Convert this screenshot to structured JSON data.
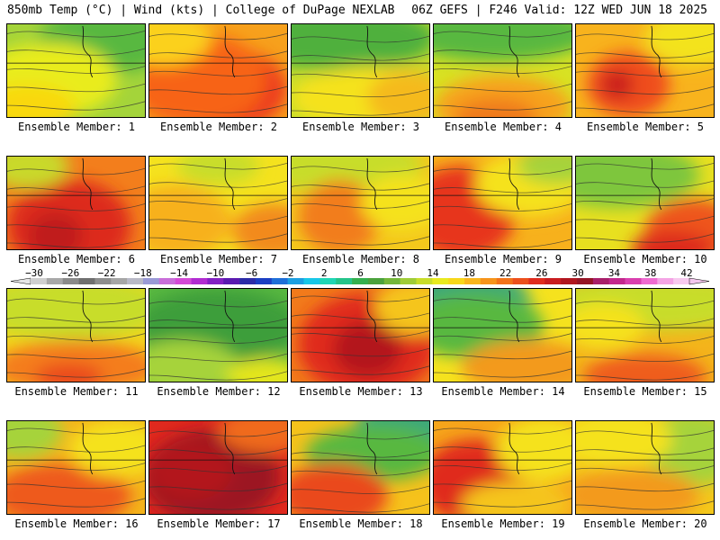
{
  "header": {
    "left": "850mb Temp (°C) | Wind (kts) | College of DuPage NEXLAB",
    "right": "06Z GEFS | F246 Valid: 12Z WED JUN 18 2025"
  },
  "member_label_prefix": "Ensemble Member: ",
  "members": [
    {
      "id": "1",
      "bg": "#a4d43a",
      "spots": [
        [
          "#58b840",
          0.72,
          0.18,
          0.5,
          0.35
        ],
        [
          "#e9ec1a",
          0.3,
          0.6,
          0.5,
          0.4
        ],
        [
          "#f9d80d",
          0.15,
          0.9,
          0.35,
          0.25
        ]
      ]
    },
    {
      "id": "2",
      "bg": "#f7a11c",
      "spots": [
        [
          "#ec3b1f",
          0.55,
          0.7,
          0.45,
          0.45
        ],
        [
          "#f76419",
          0.35,
          0.6,
          0.5,
          0.5
        ],
        [
          "#fbd11a",
          0.1,
          0.15,
          0.35,
          0.3
        ]
      ]
    },
    {
      "id": "3",
      "bg": "#c8dd2a",
      "spots": [
        [
          "#4fb03c",
          0.35,
          0.15,
          0.7,
          0.35
        ],
        [
          "#f5e21e",
          0.6,
          0.8,
          0.6,
          0.35
        ],
        [
          "#f5ba1a",
          0.85,
          0.8,
          0.3,
          0.3
        ]
      ]
    },
    {
      "id": "4",
      "bg": "#d8e223",
      "spots": [
        [
          "#58b840",
          0.45,
          0.1,
          0.7,
          0.3
        ],
        [
          "#f7a21c",
          0.5,
          0.9,
          0.5,
          0.35
        ],
        [
          "#f07a1b",
          0.45,
          1.0,
          0.3,
          0.2
        ]
      ]
    },
    {
      "id": "5",
      "bg": "#f8b31d",
      "spots": [
        [
          "#ef4d1f",
          0.38,
          0.65,
          0.3,
          0.35
        ],
        [
          "#c91d1f",
          0.3,
          0.65,
          0.12,
          0.15
        ],
        [
          "#f3e31f",
          0.85,
          0.15,
          0.35,
          0.3
        ]
      ]
    },
    {
      "id": "6",
      "bg": "#f37e1c",
      "spots": [
        [
          "#dd2a1e",
          0.45,
          0.75,
          0.45,
          0.5
        ],
        [
          "#c01b1f",
          0.35,
          0.85,
          0.2,
          0.25
        ],
        [
          "#c9d929",
          0.15,
          0.1,
          0.3,
          0.25
        ]
      ]
    },
    {
      "id": "7",
      "bg": "#f5e21e",
      "spots": [
        [
          "#f7b11c",
          0.2,
          0.7,
          0.4,
          0.4
        ],
        [
          "#f28a1a",
          0.9,
          0.8,
          0.3,
          0.3
        ],
        [
          "#c8dd2a",
          0.5,
          0.1,
          0.3,
          0.2
        ]
      ]
    },
    {
      "id": "8",
      "bg": "#f4c81c",
      "spots": [
        [
          "#c8dd2a",
          0.35,
          0.1,
          0.6,
          0.3
        ],
        [
          "#f27d1b",
          0.35,
          0.65,
          0.3,
          0.4
        ],
        [
          "#f5e21e",
          0.8,
          0.5,
          0.3,
          0.3
        ]
      ]
    },
    {
      "id": "9",
      "bg": "#f7b11c",
      "spots": [
        [
          "#e7361e",
          0.2,
          0.6,
          0.4,
          0.5
        ],
        [
          "#f5e21e",
          0.7,
          0.3,
          0.4,
          0.35
        ],
        [
          "#a6d33a",
          0.9,
          0.1,
          0.3,
          0.2
        ]
      ]
    },
    {
      "id": "10",
      "bg": "#e8e01f",
      "spots": [
        [
          "#7ec63c",
          0.3,
          0.2,
          0.6,
          0.35
        ],
        [
          "#ee541d",
          0.85,
          0.8,
          0.35,
          0.35
        ],
        [
          "#dd2a1e",
          0.7,
          1.0,
          0.3,
          0.2
        ]
      ]
    },
    {
      "id": "11",
      "bg": "#f5d51a",
      "spots": [
        [
          "#c8dd2a",
          0.45,
          0.2,
          0.7,
          0.35
        ],
        [
          "#f47d1b",
          0.5,
          0.85,
          0.6,
          0.3
        ],
        [
          "#ea4a1e",
          0.45,
          0.95,
          0.25,
          0.15
        ]
      ]
    },
    {
      "id": "12",
      "bg": "#58b840",
      "spots": [
        [
          "#3d9e3a",
          0.5,
          0.4,
          0.6,
          0.4
        ],
        [
          "#a6d33a",
          0.25,
          0.85,
          0.4,
          0.3
        ],
        [
          "#e4e61f",
          0.85,
          0.95,
          0.3,
          0.2
        ]
      ]
    },
    {
      "id": "13",
      "bg": "#f27a1b",
      "spots": [
        [
          "#e0291e",
          0.55,
          0.6,
          0.5,
          0.55
        ],
        [
          "#b3181f",
          0.55,
          0.65,
          0.25,
          0.3
        ],
        [
          "#f5c51a",
          0.9,
          0.2,
          0.3,
          0.3
        ]
      ]
    },
    {
      "id": "14",
      "bg": "#f5e21e",
      "spots": [
        [
          "#3da87a",
          0.2,
          0.15,
          0.5,
          0.4
        ],
        [
          "#58b840",
          0.3,
          0.4,
          0.5,
          0.35
        ],
        [
          "#f39a1b",
          0.7,
          0.85,
          0.5,
          0.3
        ]
      ]
    },
    {
      "id": "15",
      "bg": "#f4b41b",
      "spots": [
        [
          "#c8dd2a",
          0.6,
          0.15,
          0.8,
          0.3
        ],
        [
          "#ef5d1d",
          0.5,
          0.95,
          0.45,
          0.25
        ],
        [
          "#f5e21e",
          0.2,
          0.4,
          0.3,
          0.25
        ]
      ]
    },
    {
      "id": "16",
      "bg": "#f4b41b",
      "spots": [
        [
          "#a6d33a",
          0.1,
          0.1,
          0.3,
          0.3
        ],
        [
          "#ee5a1d",
          0.4,
          0.8,
          0.5,
          0.35
        ],
        [
          "#f5e21e",
          0.8,
          0.3,
          0.35,
          0.3
        ]
      ]
    },
    {
      "id": "17",
      "bg": "#e0291e",
      "spots": [
        [
          "#9c1621",
          0.45,
          0.6,
          0.5,
          0.5
        ],
        [
          "#b3181f",
          0.3,
          0.55,
          0.3,
          0.3
        ],
        [
          "#f06a1b",
          0.85,
          0.1,
          0.35,
          0.25
        ]
      ]
    },
    {
      "id": "18",
      "bg": "#f6c21b",
      "spots": [
        [
          "#3da87a",
          0.85,
          0.1,
          0.4,
          0.35
        ],
        [
          "#58b840",
          0.6,
          0.35,
          0.5,
          0.3
        ],
        [
          "#ea4a1e",
          0.3,
          0.8,
          0.4,
          0.35
        ]
      ]
    },
    {
      "id": "19",
      "bg": "#f6a51b",
      "spots": [
        [
          "#e0291e",
          0.3,
          0.65,
          0.4,
          0.45
        ],
        [
          "#f5e21e",
          0.8,
          0.3,
          0.35,
          0.35
        ],
        [
          "#f5c51a",
          0.6,
          0.9,
          0.4,
          0.25
        ]
      ]
    },
    {
      "id": "20",
      "bg": "#f4c81c",
      "spots": [
        [
          "#a6d33a",
          0.85,
          0.3,
          0.35,
          0.4
        ],
        [
          "#f5e21e",
          0.3,
          0.2,
          0.4,
          0.3
        ],
        [
          "#f39a1b",
          0.4,
          0.8,
          0.5,
          0.3
        ]
      ]
    }
  ],
  "colorbar": {
    "ticks": [
      "-30",
      "-26",
      "-22",
      "-18",
      "-14",
      "-10",
      "-6",
      "-2",
      "2",
      "6",
      "10",
      "14",
      "18",
      "22",
      "26",
      "30",
      "34",
      "38",
      "42"
    ],
    "colors": [
      "#cfcfcf",
      "#a8a8a8",
      "#8a8a8a",
      "#6f6f6f",
      "#8e8e8e",
      "#a6a6a6",
      "#b9b9c6",
      "#9a9ad6",
      "#c86ed9",
      "#d34ad6",
      "#b12cd1",
      "#8220c3",
      "#5a1ab0",
      "#2c2ca8",
      "#1b3fc3",
      "#1f6fd8",
      "#1c9fe1",
      "#18c7e8",
      "#20d6b5",
      "#24c48a",
      "#34b04f",
      "#4ba23d",
      "#74b73a",
      "#9fcc38",
      "#c8dd2a",
      "#e8ea1f",
      "#f7d71a",
      "#f8b61c",
      "#f6941b",
      "#f27219",
      "#ec501d",
      "#e02c1e",
      "#c91c20",
      "#b0161f",
      "#951425",
      "#a81f6a",
      "#c3278d",
      "#d93fae",
      "#ef6ad0",
      "#f4a4e5",
      "#f7c9ef"
    ]
  }
}
